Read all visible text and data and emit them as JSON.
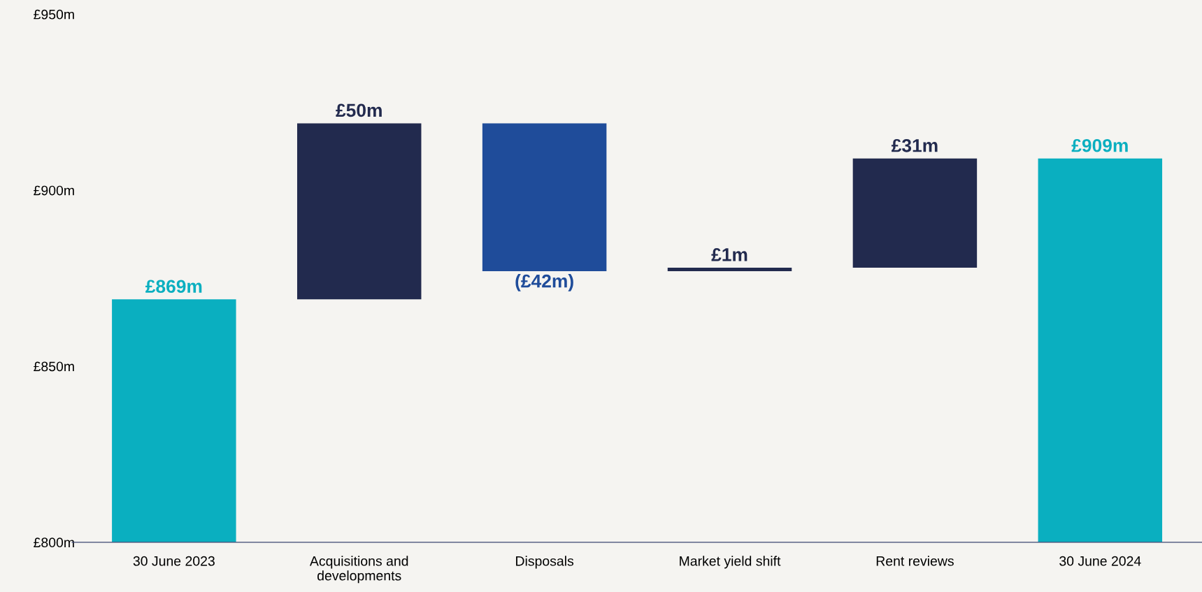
{
  "chart_data": {
    "type": "bar",
    "categories": [
      "30 June 2023",
      "Acquisitions and\ndevelopments",
      "Disposals",
      "Market yield shift",
      "Rent reviews",
      "30 June 2024"
    ],
    "values": [
      869,
      50,
      -42,
      1,
      31,
      909
    ],
    "base": [
      null,
      869,
      919,
      877,
      878,
      null
    ],
    "colors": [
      "#0aafc0",
      "#222a4e",
      "#1f4c9a",
      "#222a4e",
      "#222a4e",
      "#0aafc0"
    ],
    "value_labels": [
      "£869m",
      "£50m",
      "(£42m)",
      "£1m",
      "£31m",
      "£909m"
    ],
    "ylim": [
      800,
      950
    ],
    "yticks": [
      {
        "value": 800,
        "label": "£800m"
      },
      {
        "value": 850,
        "label": "£850m"
      },
      {
        "value": 900,
        "label": "£900m"
      },
      {
        "value": 950,
        "label": "£950m"
      }
    ],
    "grid": false,
    "legend": false
  }
}
